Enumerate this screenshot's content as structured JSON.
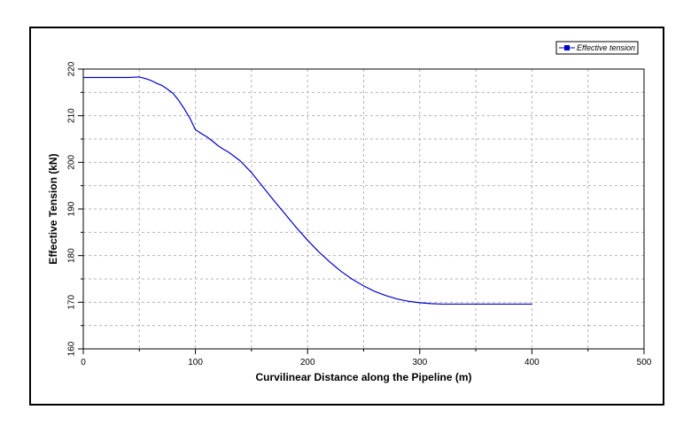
{
  "chart_data": {
    "type": "line",
    "xlabel": "Curvilinear Distance along the Pipeline (m)",
    "ylabel": "Effective Tension (kN)",
    "xlim": [
      0,
      500
    ],
    "ylim": [
      160,
      220
    ],
    "x_ticks": [
      0,
      100,
      200,
      300,
      400,
      500
    ],
    "y_ticks": [
      160,
      170,
      180,
      190,
      200,
      210,
      220
    ],
    "x_tick_labels": [
      "0",
      "100",
      "200",
      "300",
      "400",
      "500"
    ],
    "y_tick_labels": [
      "160",
      "170",
      "180",
      "190",
      "200",
      "210",
      "220"
    ],
    "grid": true,
    "legend_position": "top-right",
    "series": [
      {
        "name": "Effective tension",
        "color": "#0000cc",
        "x": [
          0,
          20,
          40,
          50,
          55,
          60,
          65,
          70,
          75,
          80,
          85,
          90,
          95,
          100,
          105,
          110,
          115,
          120,
          125,
          130,
          140,
          150,
          160,
          170,
          180,
          190,
          200,
          210,
          220,
          230,
          240,
          250,
          260,
          270,
          280,
          290,
          300,
          310,
          320,
          330,
          340,
          350,
          360,
          380,
          400
        ],
        "values": [
          218.2,
          218.2,
          218.2,
          218.3,
          218.0,
          217.6,
          217.0,
          216.5,
          215.7,
          214.8,
          213.3,
          211.5,
          209.5,
          207.0,
          206.2,
          205.5,
          204.6,
          203.6,
          202.8,
          202.1,
          200.3,
          197.8,
          194.8,
          191.8,
          188.9,
          186.0,
          183.3,
          180.8,
          178.6,
          176.6,
          174.9,
          173.5,
          172.3,
          171.4,
          170.7,
          170.2,
          169.9,
          169.7,
          169.6,
          169.6,
          169.6,
          169.6,
          169.6,
          169.6,
          169.6
        ]
      }
    ]
  }
}
